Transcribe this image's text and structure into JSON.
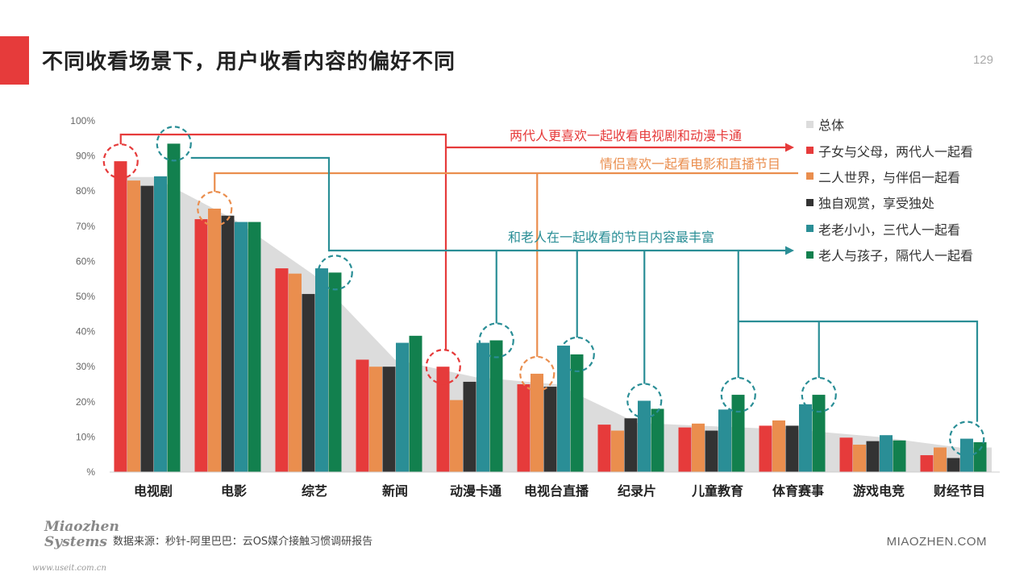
{
  "page": {
    "title": "不同收看场景下，用户收看内容的偏好不同",
    "page_number": "129",
    "source": "数据来源：秒针-阿里巴巴：云OS媒介接触习惯调研报告",
    "logo_line1": "Miaozhen",
    "logo_line2": "Systems",
    "website": "MIAOZHEN.COM",
    "watermark": "www.useit.com.cn"
  },
  "colors": {
    "total": "#dcdcdc",
    "s1": "#e63b3b",
    "s2": "#ea8e4e",
    "s3": "#333333",
    "s4": "#2a8e96",
    "s5": "#12804e",
    "accent_red": "#e63b3b",
    "accent_orange": "#ea8e4e",
    "accent_teal": "#2a8e96"
  },
  "chart_data": {
    "type": "bar",
    "categories": [
      "电视剧",
      "电影",
      "综艺",
      "新闻",
      "动漫卡通",
      "电视台直播",
      "纪录片",
      "儿童教育",
      "体育赛事",
      "游戏电竞",
      "财经节目"
    ],
    "ylim": [
      0,
      100
    ],
    "yticks": [
      "%",
      "10%",
      "20%",
      "30%",
      "40%",
      "50%",
      "60%",
      "70%",
      "80%",
      "90%",
      "100%"
    ],
    "total": {
      "name": "总体",
      "values": [
        84,
        72,
        56,
        32,
        27,
        25,
        14,
        13,
        12,
        10,
        7
      ]
    },
    "series": [
      {
        "name": "子女与父母，两代人一起看",
        "values": [
          88.5,
          72,
          58,
          32,
          30,
          25,
          13.5,
          12.7,
          13.2,
          9.8,
          4.8
        ]
      },
      {
        "name": "二人世界，与伴侣一起看",
        "values": [
          83,
          75,
          56.5,
          30,
          20.5,
          28,
          11.8,
          13.8,
          14.7,
          7.8,
          7
        ]
      },
      {
        "name": "独自观赏，享受独处",
        "values": [
          81.5,
          73,
          50.7,
          30,
          25.7,
          24.3,
          15.3,
          11.8,
          13.2,
          8.8,
          4
        ]
      },
      {
        "name": "老老小小，三代人一起看",
        "values": [
          84.2,
          71.2,
          58,
          36.8,
          36.8,
          36,
          20.3,
          17.8,
          19.3,
          10.5,
          9.5
        ]
      },
      {
        "name": "老人与孩子，隔代人一起看",
        "values": [
          93.5,
          71.2,
          56.8,
          38.8,
          37.5,
          33.5,
          18,
          22,
          22,
          9,
          8.5
        ]
      }
    ],
    "annotations": [
      {
        "text": "两代人更喜欢一起收看电视剧和动漫卡通",
        "color": "accent_red"
      },
      {
        "text": "情侣喜欢一起看电影和直播节目",
        "color": "accent_orange"
      },
      {
        "text": "和老人在一起收看的节目内容最丰富",
        "color": "accent_teal"
      }
    ],
    "legend_position": "right"
  }
}
